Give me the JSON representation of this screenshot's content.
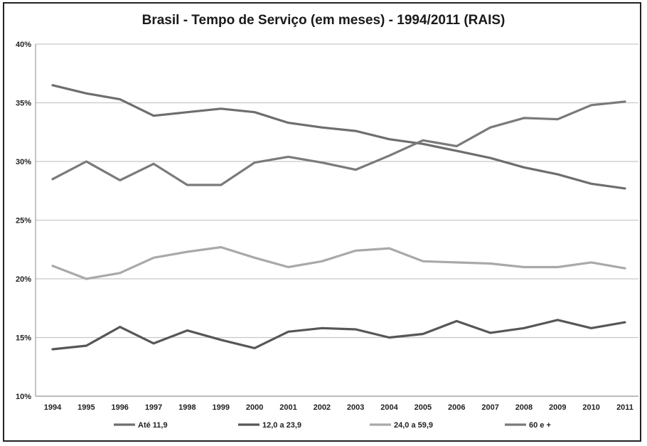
{
  "chart_data": {
    "type": "line",
    "title": "Brasil - Tempo de Serviço (em meses) - 1994/2011 (RAIS)",
    "x": [
      "1994",
      "1995",
      "1996",
      "1997",
      "1998",
      "1999",
      "2000",
      "2001",
      "2002",
      "2003",
      "2004",
      "2005",
      "2006",
      "2007",
      "2008",
      "2009",
      "2010",
      "2011"
    ],
    "ylim": [
      10,
      40
    ],
    "yticks": [
      "10%",
      "15%",
      "20%",
      "25%",
      "30%",
      "35%",
      "40%"
    ],
    "ytick_values": [
      10,
      15,
      20,
      25,
      30,
      35,
      40
    ],
    "grid": true,
    "legend_position": "bottom",
    "series": [
      {
        "name": "Até 11,9",
        "color": "#6e6e6e",
        "values": [
          36.5,
          35.8,
          35.3,
          33.9,
          34.2,
          34.5,
          34.2,
          33.3,
          32.9,
          32.6,
          31.9,
          31.5,
          30.9,
          30.3,
          29.5,
          28.9,
          28.1,
          27.7
        ]
      },
      {
        "name": "12,0 a 23,9",
        "color": "#575757",
        "values": [
          14.0,
          14.3,
          15.9,
          14.5,
          15.6,
          14.8,
          14.1,
          15.5,
          15.8,
          15.7,
          15.0,
          15.3,
          16.4,
          15.4,
          15.8,
          16.5,
          15.8,
          16.3
        ]
      },
      {
        "name": "24,0 a 59,9",
        "color": "#a9a9a9",
        "values": [
          21.1,
          20.0,
          20.5,
          21.8,
          22.3,
          22.7,
          21.8,
          21.0,
          21.5,
          22.4,
          22.6,
          21.5,
          21.4,
          21.3,
          21.0,
          21.0,
          21.4,
          20.9
        ]
      },
      {
        "name": "60 e +",
        "color": "#7a7a7a",
        "values": [
          28.5,
          30.0,
          28.4,
          29.8,
          28.0,
          28.0,
          29.9,
          30.4,
          29.9,
          29.3,
          30.5,
          31.8,
          31.3,
          32.9,
          33.7,
          33.6,
          34.8,
          35.1
        ]
      }
    ]
  }
}
